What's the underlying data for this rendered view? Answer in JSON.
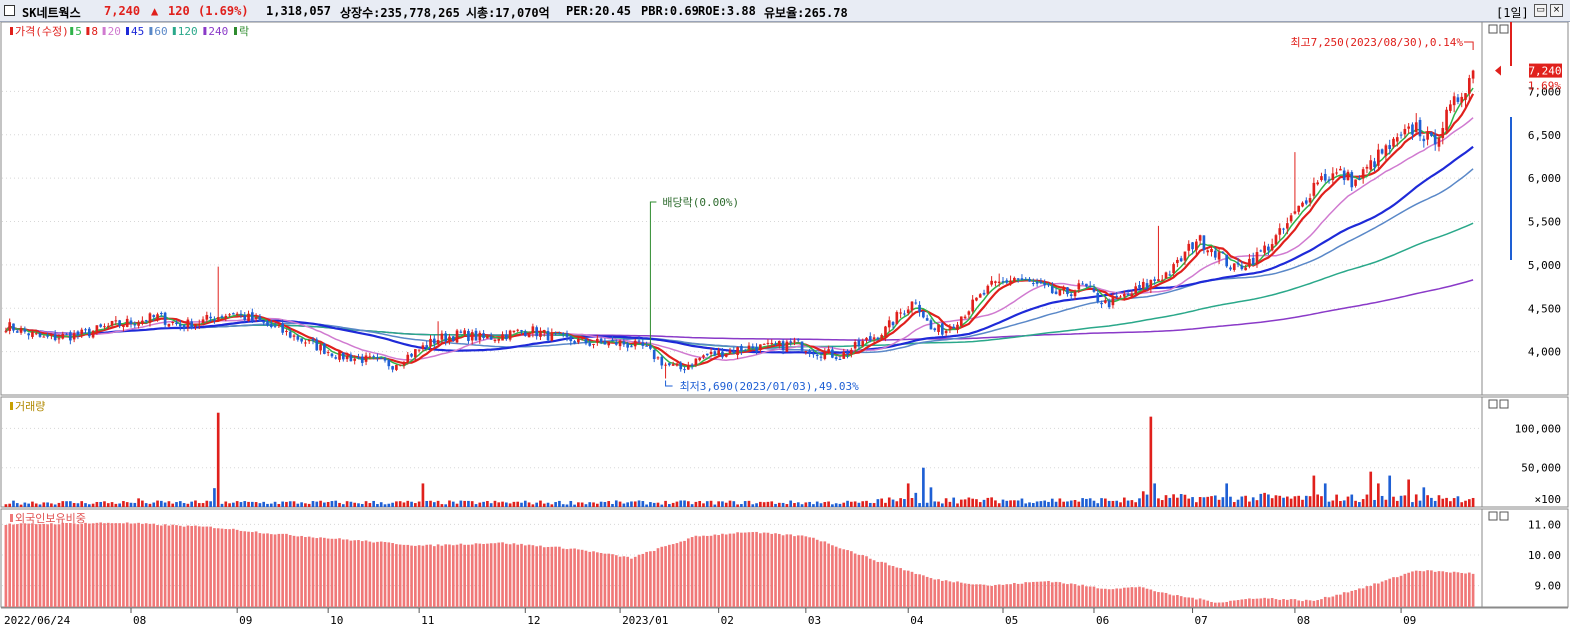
{
  "header": {
    "checkbox_icon": "checkbox-icon",
    "stock_name": "SK네트웍스",
    "price": "7,240",
    "change_arrow": "▲",
    "change": "120",
    "change_pct": "(1.69%)",
    "volume": "1,318,057",
    "shares": "상장수:235,778,265",
    "market_cap": "시총:17,070억",
    "per": "PER:20.45",
    "pbr": "PBR:0.69",
    "roe": "ROE:3.88",
    "turnover": "유보율:265.78",
    "period": "[1일]",
    "restore_icon": "restore-icon",
    "close_icon": "close-icon",
    "accent_up": "#e0201c",
    "accent_down": "#1e5fd4"
  },
  "chart_data": [
    {
      "type": "candlestick",
      "title": "가격(수정)",
      "legend": [
        {
          "name": "가격(수정)",
          "color": "#e0201c"
        },
        {
          "name": "5",
          "color": "#2fb34a"
        },
        {
          "name": "8",
          "color": "#e0201c"
        },
        {
          "name": "20",
          "color": "#d07ad0"
        },
        {
          "name": "45",
          "color": "#1e2ad8"
        },
        {
          "name": "60",
          "color": "#5a88c8"
        },
        {
          "name": "120",
          "color": "#2aa88a"
        },
        {
          "name": "240",
          "color": "#8a3ac8"
        },
        {
          "name": "락",
          "color": "#2e8b2e"
        }
      ],
      "yticks": [
        4000,
        4500,
        5000,
        5500,
        6000,
        6500,
        7000
      ],
      "ytick_labels": [
        "4,000",
        "4,500",
        "5,000",
        "5,500",
        "6,000",
        "6,500",
        "7,000"
      ],
      "ylim": [
        3500,
        7800
      ],
      "xlabels": [
        "2022/06/24",
        "08",
        "09",
        "10",
        "11",
        "12",
        "2023/01",
        "02",
        "03",
        "04",
        "05",
        "06",
        "07",
        "08",
        "09"
      ],
      "close_anchors": [
        [
          0,
          4300
        ],
        [
          10,
          4150
        ],
        [
          20,
          4200
        ],
        [
          28,
          4300
        ],
        [
          34,
          4350
        ],
        [
          40,
          4400
        ],
        [
          46,
          4300
        ],
        [
          52,
          4350
        ],
        [
          55,
          4400
        ],
        [
          60,
          4450
        ],
        [
          66,
          4350
        ],
        [
          72,
          4250
        ],
        [
          80,
          4100
        ],
        [
          88,
          3950
        ],
        [
          96,
          3900
        ],
        [
          102,
          3850
        ],
        [
          108,
          4000
        ],
        [
          114,
          4150
        ],
        [
          120,
          4200
        ],
        [
          126,
          4150
        ],
        [
          132,
          4200
        ],
        [
          138,
          4250
        ],
        [
          146,
          4150
        ],
        [
          154,
          4100
        ],
        [
          162,
          4100
        ],
        [
          168,
          4050
        ],
        [
          174,
          3850
        ],
        [
          178,
          3800
        ],
        [
          184,
          3950
        ],
        [
          190,
          4000
        ],
        [
          196,
          4050
        ],
        [
          202,
          4050
        ],
        [
          208,
          4100
        ],
        [
          214,
          4000
        ],
        [
          220,
          3950
        ],
        [
          226,
          4100
        ],
        [
          232,
          4250
        ],
        [
          236,
          4450
        ],
        [
          240,
          4600
        ],
        [
          244,
          4250
        ],
        [
          248,
          4250
        ],
        [
          254,
          4500
        ],
        [
          260,
          4750
        ],
        [
          266,
          4850
        ],
        [
          272,
          4750
        ],
        [
          278,
          4650
        ],
        [
          284,
          4750
        ],
        [
          290,
          4550
        ],
        [
          296,
          4650
        ],
        [
          302,
          4800
        ],
        [
          308,
          4950
        ],
        [
          314,
          5300
        ],
        [
          318,
          5200
        ],
        [
          324,
          4950
        ],
        [
          330,
          5100
        ],
        [
          336,
          5350
        ],
        [
          342,
          5700
        ],
        [
          346,
          6000
        ],
        [
          352,
          6050
        ],
        [
          356,
          5950
        ],
        [
          362,
          6250
        ],
        [
          368,
          6450
        ],
        [
          372,
          6600
        ],
        [
          376,
          6400
        ],
        [
          380,
          6700
        ],
        [
          384,
          7000
        ],
        [
          387,
          7240
        ]
      ],
      "ma_lines": [
        {
          "name": "5",
          "color": "#2fb34a",
          "period": 5
        },
        {
          "name": "8",
          "color": "#e0201c",
          "period": 8
        },
        {
          "name": "20",
          "color": "#d07ad0",
          "period": 20
        },
        {
          "name": "45",
          "color": "#1e2ad8",
          "period": 45
        },
        {
          "name": "60",
          "color": "#5a88c8",
          "period": 60
        },
        {
          "name": "120",
          "color": "#2aa88a",
          "period": 120
        },
        {
          "name": "240",
          "color": "#8a3ac8",
          "period": 240
        }
      ],
      "annotations": {
        "high": "최고7,250(2023/08/30),0.14%",
        "low": "최저3,690(2023/01/03),49.03%",
        "exdiv": "배당락(0.00%)",
        "last_price": "7,240",
        "last_pct": "1.69%"
      }
    },
    {
      "type": "bar",
      "title": "거래량",
      "yticks": [
        50000,
        100000
      ],
      "ytick_labels": [
        "50,000",
        "100,000"
      ],
      "bottom_label": "×100",
      "ylim": [
        0,
        140000
      ],
      "typical": 6000,
      "spikes": [
        [
          35,
          11000
        ],
        [
          55,
          24000
        ],
        [
          56,
          120000
        ],
        [
          58,
          7000
        ],
        [
          110,
          30000
        ],
        [
          230,
          10000
        ],
        [
          238,
          30000
        ],
        [
          240,
          18000
        ],
        [
          242,
          50000
        ],
        [
          244,
          25000
        ],
        [
          250,
          12000
        ],
        [
          300,
          20000
        ],
        [
          302,
          115000
        ],
        [
          303,
          30000
        ],
        [
          322,
          30000
        ],
        [
          332,
          18000
        ],
        [
          345,
          40000
        ],
        [
          348,
          30000
        ],
        [
          360,
          45000
        ],
        [
          362,
          30000
        ],
        [
          365,
          40000
        ],
        [
          370,
          35000
        ],
        [
          374,
          25000
        ],
        [
          378,
          15000
        ]
      ]
    },
    {
      "type": "bar",
      "title": "외국인보유비중",
      "yticks": [
        9.0,
        10.0,
        11.0
      ],
      "ytick_labels": [
        "9.00",
        "10.00",
        "11.00"
      ],
      "ylim": [
        8.3,
        11.5
      ],
      "anchors": [
        [
          0,
          11.0
        ],
        [
          30,
          11.05
        ],
        [
          55,
          10.9
        ],
        [
          70,
          10.7
        ],
        [
          90,
          10.5
        ],
        [
          110,
          10.3
        ],
        [
          130,
          10.4
        ],
        [
          150,
          10.2
        ],
        [
          165,
          9.9
        ],
        [
          172,
          10.2
        ],
        [
          182,
          10.6
        ],
        [
          195,
          10.75
        ],
        [
          212,
          10.6
        ],
        [
          230,
          9.8
        ],
        [
          245,
          9.2
        ],
        [
          260,
          9.0
        ],
        [
          275,
          9.15
        ],
        [
          290,
          8.9
        ],
        [
          300,
          8.95
        ],
        [
          305,
          8.75
        ],
        [
          320,
          8.45
        ],
        [
          330,
          8.6
        ],
        [
          345,
          8.5
        ],
        [
          360,
          9.0
        ],
        [
          372,
          9.5
        ],
        [
          387,
          9.4
        ]
      ]
    }
  ]
}
